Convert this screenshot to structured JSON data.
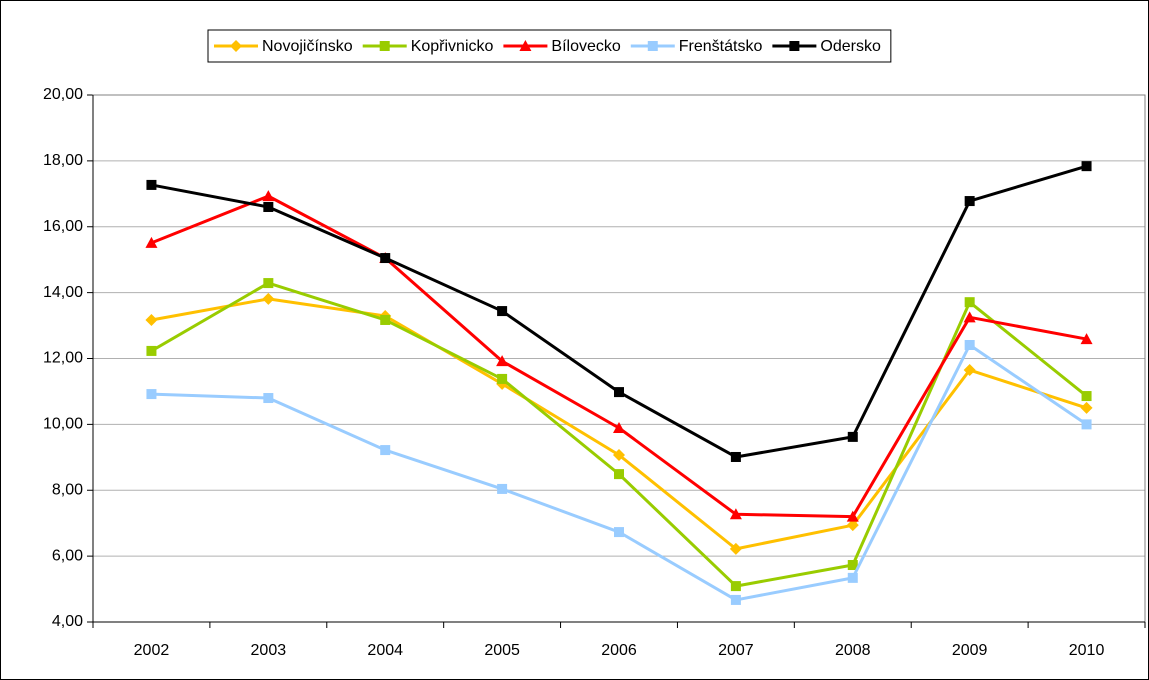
{
  "chart_data": {
    "type": "line",
    "categories": [
      "2002",
      "2003",
      "2004",
      "2005",
      "2006",
      "2007",
      "2008",
      "2009",
      "2010"
    ],
    "series": [
      {
        "name": "Novojičínsko",
        "color": "#FFC000",
        "marker": "diamond",
        "values": [
          13.17,
          13.81,
          13.29,
          11.23,
          9.07,
          6.22,
          6.94,
          11.65,
          10.5
        ]
      },
      {
        "name": "Kopřivnicko",
        "color": "#99CC00",
        "marker": "square",
        "values": [
          12.23,
          14.29,
          13.17,
          11.38,
          8.49,
          5.09,
          5.73,
          13.71,
          10.86
        ]
      },
      {
        "name": "Bílovecko",
        "color": "#FF0000",
        "marker": "triangle",
        "values": [
          15.51,
          16.93,
          15.05,
          11.92,
          9.89,
          7.27,
          7.2,
          13.25,
          12.59
        ]
      },
      {
        "name": "Frenštátsko",
        "color": "#99CCFF",
        "marker": "square",
        "values": [
          10.92,
          10.8,
          9.22,
          8.04,
          6.73,
          4.67,
          5.34,
          12.41,
          10.0
        ]
      },
      {
        "name": "Odersko",
        "color": "#000000",
        "marker": "square",
        "values": [
          17.27,
          16.6,
          15.05,
          13.44,
          10.98,
          9.01,
          9.62,
          16.78,
          17.84
        ]
      }
    ],
    "ylim": [
      4,
      20
    ],
    "yticks": [
      {
        "value": 4,
        "label": "4,00"
      },
      {
        "value": 6,
        "label": "6,00"
      },
      {
        "value": 8,
        "label": "8,00"
      },
      {
        "value": 10,
        "label": "10,00"
      },
      {
        "value": 12,
        "label": "12,00"
      },
      {
        "value": 14,
        "label": "14,00"
      },
      {
        "value": 16,
        "label": "16,00"
      },
      {
        "value": 18,
        "label": "18,00"
      },
      {
        "value": 20,
        "label": "20,00"
      }
    ],
    "grid": true,
    "legend": "top"
  }
}
